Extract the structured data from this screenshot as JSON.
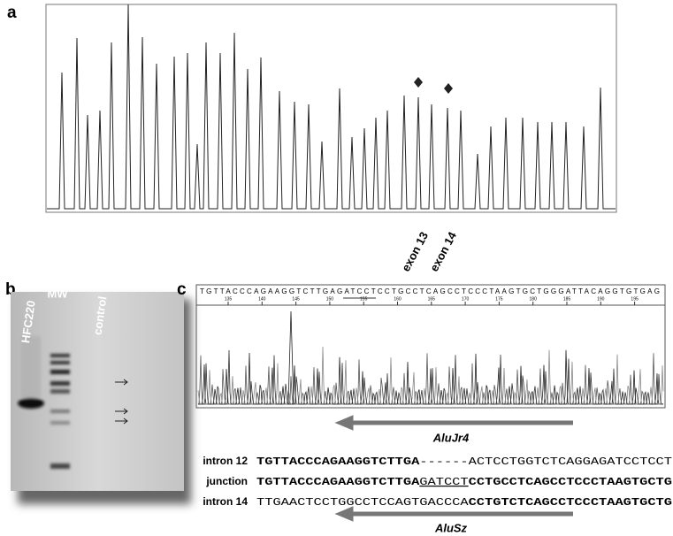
{
  "panels": {
    "a": {
      "label": "a",
      "exon_labels": [
        "exon 13",
        "exon 14"
      ]
    },
    "b": {
      "label": "b",
      "lanes": [
        "HFC220",
        "MW",
        "control"
      ]
    },
    "c": {
      "label": "c",
      "trace_sequence": "TGTTACCCAGAAGGTCTTGAGATCCTCCTGCCTCAGCCTCCCTAAGTGCTGGGATTACAGGTGTGAG",
      "trace_positions": [
        135,
        140,
        145,
        150,
        155,
        160,
        165,
        170,
        175,
        180,
        185,
        190,
        195
      ],
      "alu_top": "AluJr4",
      "alu_bottom": "AluSz",
      "rows": [
        {
          "name": "intron 12",
          "parts": [
            "TGTTACCCAGAAGGTCTTGA",
            "------ACTCCTGGTCTCAGGAGATCCTCCT"
          ]
        },
        {
          "name": "junction",
          "parts": [
            "TGTTACCCAGAAGGTCTTGA",
            "GATCCT",
            "CCTGCCTCAGCCTCCCTAAGTGCTG"
          ]
        },
        {
          "name": "intron 14",
          "parts": [
            "TTGAACTCCTGGCCTCCAGTGACCCA",
            "CCTGTCTCAGCCTCCCTAAGTGCTG"
          ]
        }
      ]
    }
  }
}
